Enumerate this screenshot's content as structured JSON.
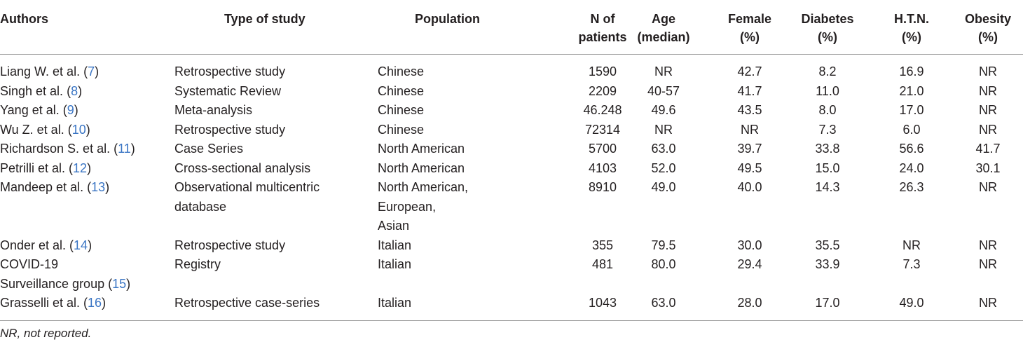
{
  "headers": {
    "authors": "Authors",
    "type": "Type of study",
    "population": "Population",
    "n": "N of\npatients",
    "age": "Age\n(median)",
    "female": "Female\n(%)",
    "diabetes": "Diabetes\n(%)",
    "htn": "H.T.N.\n(%)",
    "obesity": "Obesity\n(%)"
  },
  "rows": [
    {
      "author": "Liang W. et al. (",
      "ref": "7",
      "author_end": ")",
      "author2": "",
      "type": [
        "Retrospective study"
      ],
      "population": [
        "Chinese"
      ],
      "n": "1590",
      "age": "NR",
      "female": "42.7",
      "diabetes": "8.2",
      "htn": "16.9",
      "obesity": "NR"
    },
    {
      "author": "Singh et al. (",
      "ref": "8",
      "author_end": ")",
      "author2": "",
      "type": [
        "Systematic Review"
      ],
      "population": [
        "Chinese"
      ],
      "n": "2209",
      "age": "40-57",
      "female": "41.7",
      "diabetes": "11.0",
      "htn": "21.0",
      "obesity": "NR"
    },
    {
      "author": "Yang et al. (",
      "ref": "9",
      "author_end": ")",
      "author2": "",
      "type": [
        "Meta-analysis"
      ],
      "population": [
        "Chinese"
      ],
      "n": "46.248",
      "age": "49.6",
      "female": "43.5",
      "diabetes": "8.0",
      "htn": "17.0",
      "obesity": "NR"
    },
    {
      "author": "Wu Z. et al. (",
      "ref": "10",
      "author_end": ")",
      "author2": "",
      "type": [
        "Retrospective study"
      ],
      "population": [
        "Chinese"
      ],
      "n": "72314",
      "age": "NR",
      "female": "NR",
      "diabetes": "7.3",
      "htn": "6.0",
      "obesity": "NR"
    },
    {
      "author": "Richardson S. et al. (",
      "ref": "11",
      "author_end": ")",
      "author2": "",
      "type": [
        "Case Series"
      ],
      "population": [
        "North American"
      ],
      "n": "5700",
      "age": "63.0",
      "female": "39.7",
      "diabetes": "33.8",
      "htn": "56.6",
      "obesity": "41.7"
    },
    {
      "author": "Petrilli et al. (",
      "ref": "12",
      "author_end": ")",
      "author2": "",
      "type": [
        "Cross-sectional analysis"
      ],
      "population": [
        "North American"
      ],
      "n": "4103",
      "age": "52.0",
      "female": "49.5",
      "diabetes": "15.0",
      "htn": "24.0",
      "obesity": "30.1"
    },
    {
      "author": "Mandeep et al. (",
      "ref": "13",
      "author_end": ")",
      "author2": "",
      "type": [
        "Observational multicentric",
        "database"
      ],
      "population": [
        "North American,",
        "European,",
        "Asian"
      ],
      "n": "8910",
      "age": "49.0",
      "female": "40.0",
      "diabetes": "14.3",
      "htn": "26.3",
      "obesity": "NR"
    },
    {
      "author": "Onder et al. (",
      "ref": "14",
      "author_end": ")",
      "author2": "",
      "type": [
        "Retrospective study"
      ],
      "population": [
        "Italian"
      ],
      "n": "355",
      "age": "79.5",
      "female": "30.0",
      "diabetes": "35.5",
      "htn": "NR",
      "obesity": "NR"
    },
    {
      "author": "COVID-19",
      "ref": "15",
      "author_end": ")",
      "author2": "Surveillance group (",
      "type": [
        "Registry"
      ],
      "population": [
        "Italian"
      ],
      "n": "481",
      "age": "80.0",
      "female": "29.4",
      "diabetes": "33.9",
      "htn": "7.3",
      "obesity": "NR"
    },
    {
      "author": "Grasselli et al. (",
      "ref": "16",
      "author_end": ")",
      "author2": "",
      "type": [
        "Retrospective case-series"
      ],
      "population": [
        "Italian"
      ],
      "n": "1043",
      "age": "63.0",
      "female": "28.0",
      "diabetes": "17.0",
      "htn": "49.0",
      "obesity": "NR"
    }
  ],
  "footnote": "NR, not reported.",
  "colors": {
    "text": "#231f20",
    "reference_link": "#3a75c4",
    "rule": "#9a9a9a"
  }
}
